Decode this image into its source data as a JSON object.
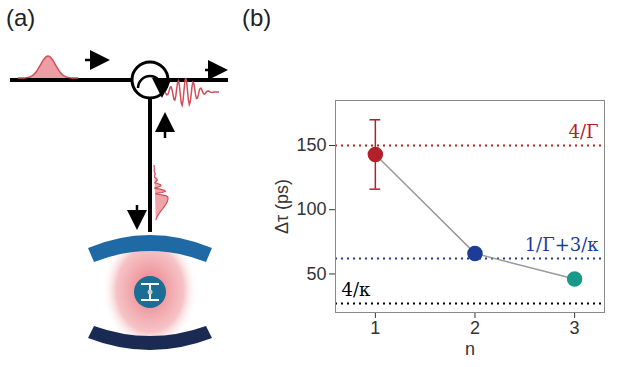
{
  "panel_a": {
    "label": "(a)"
  },
  "chart_data": {
    "type": "scatter",
    "label": "(b)",
    "x_label": "n",
    "y_label": "Δτ (ps)",
    "x": [
      1,
      2,
      3
    ],
    "values": [
      143,
      66,
      46
    ],
    "errors": [
      27,
      null,
      null
    ],
    "colors": [
      "#b3202a",
      "#1c3c96",
      "#1a9888"
    ],
    "color": "#999999",
    "marker": "circle",
    "line_style": "solid",
    "xlim": [
      0.6,
      3.3
    ],
    "ylim": [
      20,
      185
    ],
    "xticks": [
      1,
      2,
      3
    ],
    "yticks": [
      50,
      100,
      150
    ],
    "grid": false,
    "reference_lines": [
      {
        "label": "4/Γ",
        "value": 150,
        "color": "#b3202a",
        "line_style": "dotted"
      },
      {
        "label": "1/Γ+3/κ",
        "value": 62,
        "color": "#1c3c96",
        "line_style": "dotted"
      },
      {
        "label": "4/κ",
        "value": 27,
        "color": "#000000",
        "line_style": "dotted"
      }
    ]
  }
}
